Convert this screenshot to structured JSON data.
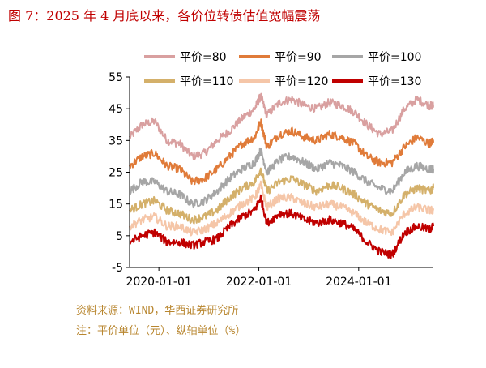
{
  "header": {
    "title": "图 7：2025 年 4 月底以来，各价位转债估值宽幅震荡"
  },
  "footer": {
    "source": "资料来源：WIND，华西证券研究所",
    "note": "注：平价单位（元）、纵轴单位（%）"
  },
  "chart_data": {
    "type": "line",
    "title": "",
    "xlabel": "",
    "ylabel": "",
    "ylim": [
      -5,
      55
    ],
    "yticks": [
      -5,
      5,
      15,
      25,
      35,
      45,
      55
    ],
    "x_range": [
      "2019-06-01",
      "2025-06-30"
    ],
    "x_ticks": [
      "2020-01-01",
      "2022-01-01",
      "2024-01-01"
    ],
    "legend_position": "top",
    "grid": false,
    "x": [
      "2019-06-01",
      "2019-09-01",
      "2019-12-01",
      "2020-03-01",
      "2020-06-01",
      "2020-09-01",
      "2020-12-01",
      "2021-03-01",
      "2021-06-01",
      "2021-09-01",
      "2021-12-01",
      "2022-01-15",
      "2022-03-01",
      "2022-06-01",
      "2022-09-01",
      "2022-12-01",
      "2023-03-01",
      "2023-06-01",
      "2023-09-01",
      "2023-12-01",
      "2024-03-01",
      "2024-06-01",
      "2024-09-01",
      "2024-12-01",
      "2025-03-01",
      "2025-06-01",
      "2025-06-30"
    ],
    "series": [
      {
        "name": "平价=80",
        "color": "#d9a0a0",
        "values": [
          36,
          40,
          41,
          35,
          34,
          30,
          31,
          35,
          38,
          42,
          45,
          49,
          43,
          47,
          48,
          46,
          45,
          47,
          46,
          44,
          40,
          37,
          38,
          45,
          48,
          46,
          46
        ]
      },
      {
        "name": "平价=90",
        "color": "#e07b39",
        "values": [
          27,
          30,
          31,
          27,
          26,
          22,
          23,
          26,
          30,
          34,
          36,
          41,
          33,
          37,
          38,
          36,
          35,
          37,
          36,
          34,
          30,
          28,
          28,
          33,
          36,
          34,
          35
        ]
      },
      {
        "name": "平价=100",
        "color": "#a6a6a6",
        "values": [
          19,
          22,
          22,
          19,
          18,
          15,
          16,
          19,
          23,
          26,
          28,
          32,
          25,
          29,
          30,
          28,
          26,
          28,
          27,
          25,
          22,
          20,
          19,
          25,
          27,
          26,
          26
        ]
      },
      {
        "name": "平价=110",
        "color": "#d4b06a",
        "values": [
          13,
          15,
          16,
          13,
          12,
          10,
          11,
          13,
          17,
          20,
          22,
          26,
          19,
          22,
          23,
          21,
          19,
          21,
          20,
          18,
          15,
          13,
          12,
          18,
          20,
          19,
          20
        ]
      },
      {
        "name": "平价=120",
        "color": "#f5c6a8",
        "values": [
          8,
          10,
          11,
          8,
          8,
          6,
          7,
          9,
          12,
          15,
          17,
          21,
          14,
          17,
          17,
          15,
          14,
          15,
          14,
          12,
          9,
          7,
          6,
          12,
          14,
          13,
          13
        ]
      },
      {
        "name": "平价=130",
        "color": "#c00000",
        "values": [
          3,
          5,
          6,
          3,
          3,
          2,
          3,
          4,
          8,
          11,
          13,
          17,
          9,
          12,
          12,
          10,
          9,
          10,
          9,
          7,
          3,
          0,
          -1,
          6,
          8,
          7,
          8
        ]
      }
    ]
  }
}
